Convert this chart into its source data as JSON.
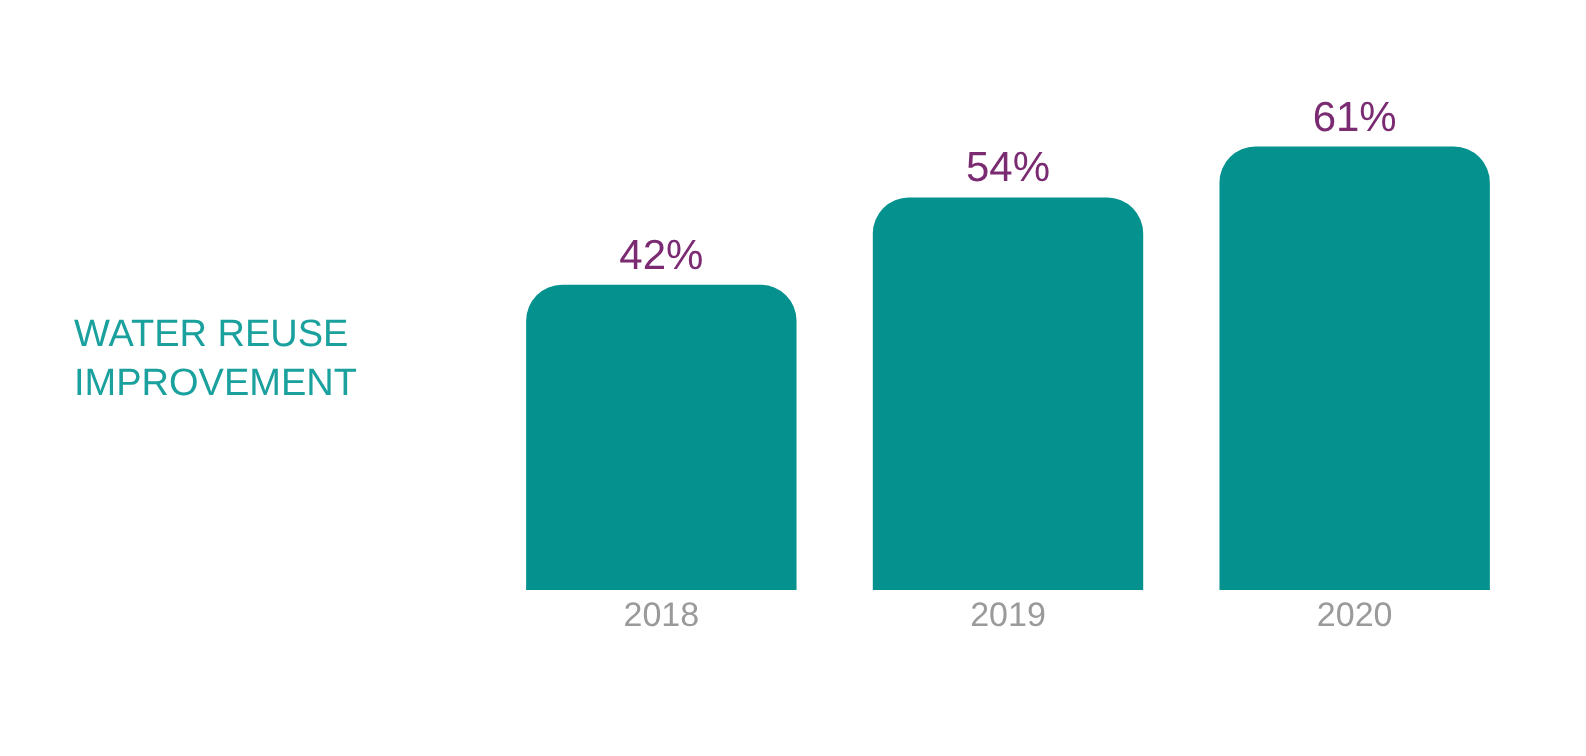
{
  "chart_data": {
    "type": "bar",
    "title": "WATER REUSE IMPROVEMENT",
    "categories": [
      "2018",
      "2019",
      "2020"
    ],
    "values": [
      42,
      54,
      61
    ],
    "value_labels": [
      "42%",
      "54%",
      "61%"
    ],
    "color": "#05928f"
  }
}
